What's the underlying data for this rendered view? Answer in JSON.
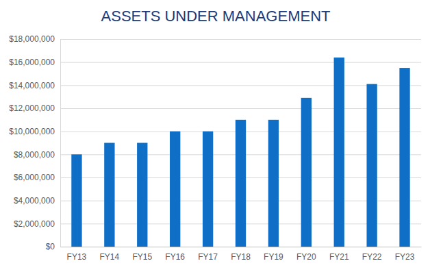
{
  "chart_data": {
    "type": "bar",
    "title": "ASSETS UNDER MANAGEMENT",
    "categories": [
      "FY13",
      "FY14",
      "FY15",
      "FY16",
      "FY17",
      "FY18",
      "FY19",
      "FY20",
      "FY21",
      "FY22",
      "FY23"
    ],
    "values": [
      8000000,
      9000000,
      9000000,
      10000000,
      10000000,
      11000000,
      11000000,
      12900000,
      16400000,
      14100000,
      15500000
    ],
    "color": "#0f6fc6",
    "ylim": [
      0,
      18000000
    ],
    "yticks": [
      {
        "value": 0,
        "label": "$0"
      },
      {
        "value": 2000000,
        "label": "$2,000,000"
      },
      {
        "value": 4000000,
        "label": "$4,000,000"
      },
      {
        "value": 6000000,
        "label": "$6,000,000"
      },
      {
        "value": 8000000,
        "label": "$8,000,000"
      },
      {
        "value": 10000000,
        "label": "$10,000,000"
      },
      {
        "value": 12000000,
        "label": "$12,000,000"
      },
      {
        "value": 14000000,
        "label": "$14,000,000"
      },
      {
        "value": 16000000,
        "label": "$16,000,000"
      },
      {
        "value": 18000000,
        "label": "$18,000,000"
      }
    ],
    "grid": true
  }
}
